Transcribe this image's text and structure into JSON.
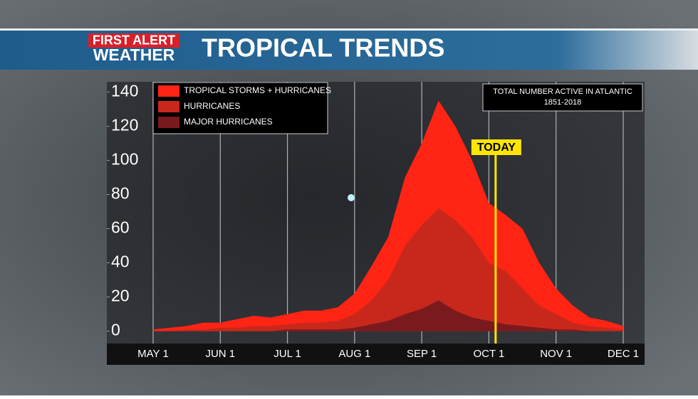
{
  "branding": {
    "line1": "FIRST ALERT",
    "line2": "WEATHER"
  },
  "chart_data": {
    "type": "area",
    "title": "TROPICAL TRENDS",
    "note": [
      "TOTAL NUMBER ACTIVE IN ATLANTIC",
      "1851-2018"
    ],
    "marker_label": "TODAY",
    "categories": [
      "MAY 1",
      null,
      null,
      null,
      "JUN 1",
      null,
      null,
      null,
      "JUL 1",
      null,
      null,
      null,
      "AUG 1",
      null,
      null,
      null,
      "SEP 1",
      null,
      null,
      null,
      "OCT 1",
      null,
      null,
      null,
      "NOV 1",
      null,
      null,
      null,
      "DEC 1"
    ],
    "series": [
      {
        "name": "TROPICAL STORMS + HURRICANES",
        "color": "#ff2414",
        "values": [
          1,
          2,
          3,
          5,
          5,
          7,
          9,
          8,
          10,
          12,
          12,
          14,
          22,
          38,
          55,
          90,
          110,
          135,
          120,
          100,
          75,
          68,
          60,
          40,
          25,
          15,
          8,
          6,
          3
        ]
      },
      {
        "name": "HURRICANES",
        "color": "#c8281c",
        "values": [
          0,
          0,
          1,
          1,
          2,
          2,
          3,
          3,
          4,
          5,
          5,
          6,
          10,
          18,
          30,
          50,
          62,
          72,
          65,
          55,
          40,
          35,
          25,
          15,
          10,
          5,
          3,
          2,
          1
        ]
      },
      {
        "name": "MAJOR HURRICANES",
        "color": "#7a1a1e",
        "values": [
          0,
          0,
          0,
          0,
          0,
          0,
          0,
          0,
          1,
          1,
          1,
          1,
          2,
          4,
          6,
          10,
          13,
          18,
          12,
          8,
          6,
          4,
          3,
          2,
          1,
          1,
          0,
          0,
          0
        ]
      }
    ],
    "ylim": [
      -6,
      146
    ],
    "yticks": [
      0,
      20,
      40,
      60,
      80,
      100,
      120,
      140
    ],
    "grid": true,
    "legend": "top-left"
  }
}
